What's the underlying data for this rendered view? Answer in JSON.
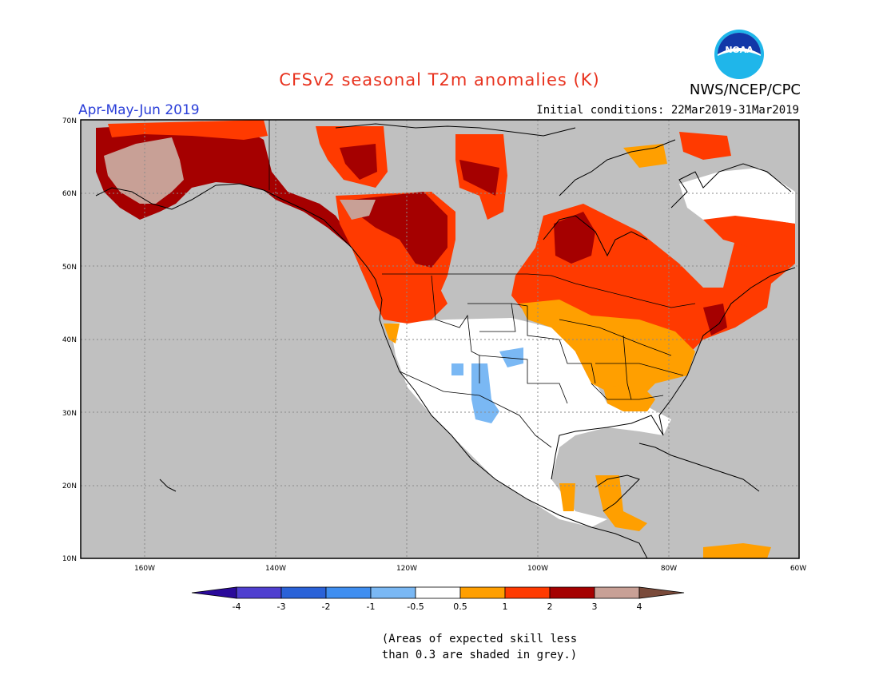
{
  "header": {
    "title": "CFSv2 seasonal T2m anomalies (K)",
    "agency": "NWS/NCEP/CPC",
    "logo_text": "NOAA",
    "period": "Apr-May-Jun 2019",
    "initial_conditions": "Initial conditions: 22Mar2019-31Mar2019"
  },
  "map": {
    "lat_labels": [
      "70N",
      "60N",
      "50N",
      "40N",
      "30N",
      "20N",
      "10N"
    ],
    "lon_labels": [
      "160W",
      "140W",
      "120W",
      "100W",
      "80W",
      "60W"
    ],
    "colors": {
      "ocean_grey": "#c0c0c0",
      "land_white": "#ffffff",
      "anom_0_5_1": "#ff9f00",
      "anom_1_2": "#ff3a00",
      "anom_2_3": "#a50000",
      "anom_3_4": "#c8a096",
      "anom_m1_m0_5": "#7ab8f4",
      "border": "#000000"
    }
  },
  "legend": {
    "tick_labels": [
      "-4",
      "-3",
      "-2",
      "-1",
      "-0.5",
      "0.5",
      "1",
      "2",
      "3",
      "4"
    ],
    "colors": [
      "#2a0a9a",
      "#4f3fd0",
      "#2a62d8",
      "#3f8ef0",
      "#7ab8f4",
      "#ffffff",
      "#ff9f00",
      "#ff3a00",
      "#a50000",
      "#c8a096",
      "#7a4a3a"
    ]
  },
  "footnote": {
    "line1": "(Areas of expected skill less",
    "line2": "than 0.3 are shaded in grey.)"
  }
}
